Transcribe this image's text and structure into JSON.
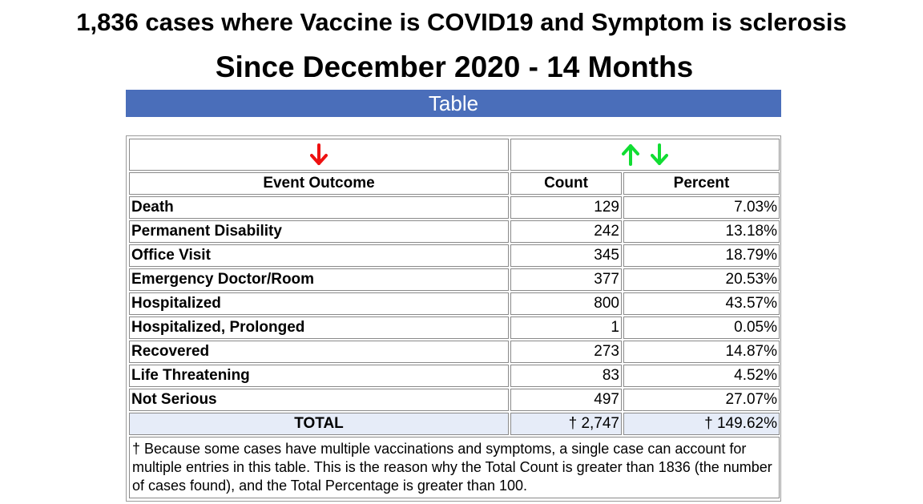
{
  "title": {
    "line1": "1,836 cases where Vaccine is COVID19 and Symptom is sclerosis",
    "line2": "Since December 2020 - 14 Months"
  },
  "section_label": "Table",
  "colors": {
    "header_bar": "#4a6eba",
    "total_row": "#e6ecf8",
    "arrow_down_red": "#ee1111",
    "arrow_green": "#11dd33"
  },
  "icons": {
    "sort_outcome": "arrow-down-icon",
    "sort_count_up": "arrow-up-icon",
    "sort_count_down": "arrow-down-icon"
  },
  "table": {
    "headers": {
      "outcome": "Event Outcome",
      "count": "Count",
      "percent": "Percent"
    },
    "rows": [
      {
        "outcome": "Death",
        "count": "129",
        "percent": "7.03%"
      },
      {
        "outcome": "Permanent Disability",
        "count": "242",
        "percent": "13.18%"
      },
      {
        "outcome": "Office Visit",
        "count": "345",
        "percent": "18.79%"
      },
      {
        "outcome": "Emergency Doctor/Room",
        "count": "377",
        "percent": "20.53%"
      },
      {
        "outcome": "Hospitalized",
        "count": "800",
        "percent": "43.57%"
      },
      {
        "outcome": "Hospitalized, Prolonged",
        "count": "1",
        "percent": "0.05%"
      },
      {
        "outcome": "Recovered",
        "count": "273",
        "percent": "14.87%"
      },
      {
        "outcome": "Life Threatening",
        "count": "83",
        "percent": "4.52%"
      },
      {
        "outcome": "Not Serious",
        "count": "497",
        "percent": "27.07%"
      }
    ],
    "total": {
      "label": "TOTAL",
      "count": "† 2,747",
      "percent": "† 149.62%"
    },
    "footnote": "† Because some cases have multiple vaccinations and symptoms, a single case can account for multiple entries in this table. This is the reason why the Total Count is greater than 1836 (the number of cases found), and the Total Percentage is greater than 100."
  }
}
